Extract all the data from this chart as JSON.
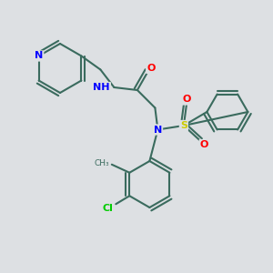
{
  "background_color": "#dde0e3",
  "bond_color": "#3a6b5e",
  "bond_width": 1.5,
  "atom_colors": {
    "N": "#0000ff",
    "O": "#ff0000",
    "S": "#cccc00",
    "Cl": "#00cc00",
    "H": "#555555",
    "C": "#000000"
  },
  "font_size": 7.5
}
